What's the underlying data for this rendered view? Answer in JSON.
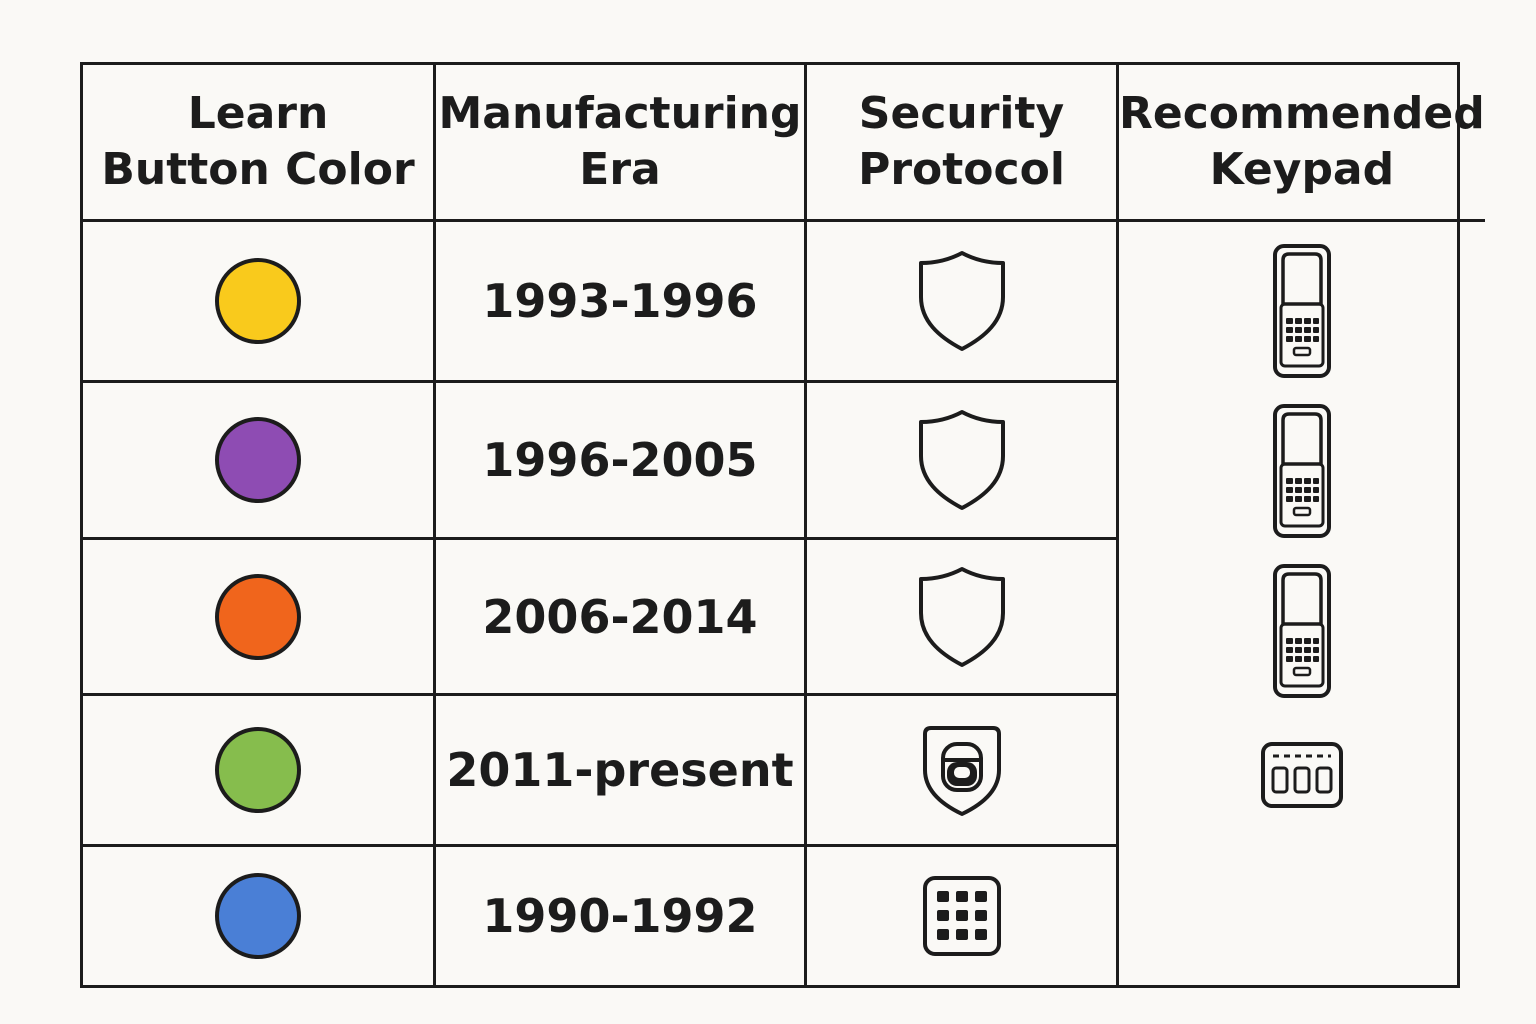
{
  "headers": {
    "color": "Learn\nButton Color",
    "era": "Manufacturing\nEra",
    "security": "Security\nProtocol",
    "keypad": "Recommended\nKeypad"
  },
  "rows": [
    {
      "color": "#f9ca1c",
      "era": "1993-1996",
      "security_icon": "shield-icon"
    },
    {
      "color": "#8e4cb3",
      "era": "1996-2005",
      "security_icon": "shield-icon"
    },
    {
      "color": "#f0651c",
      "era": "2006-2014",
      "security_icon": "shield-icon"
    },
    {
      "color": "#86bd4d",
      "era": "2011-present",
      "security_icon": "shield-lock-icon"
    },
    {
      "color": "#4a7fd6",
      "era": "1990-1992",
      "security_icon": "keypad-grid-icon"
    }
  ],
  "keypads": [
    {
      "icon": "handheld-keypad-icon"
    },
    {
      "icon": "handheld-keypad-icon"
    },
    {
      "icon": "handheld-keypad-icon"
    },
    {
      "icon": "wide-keypad-icon"
    }
  ]
}
